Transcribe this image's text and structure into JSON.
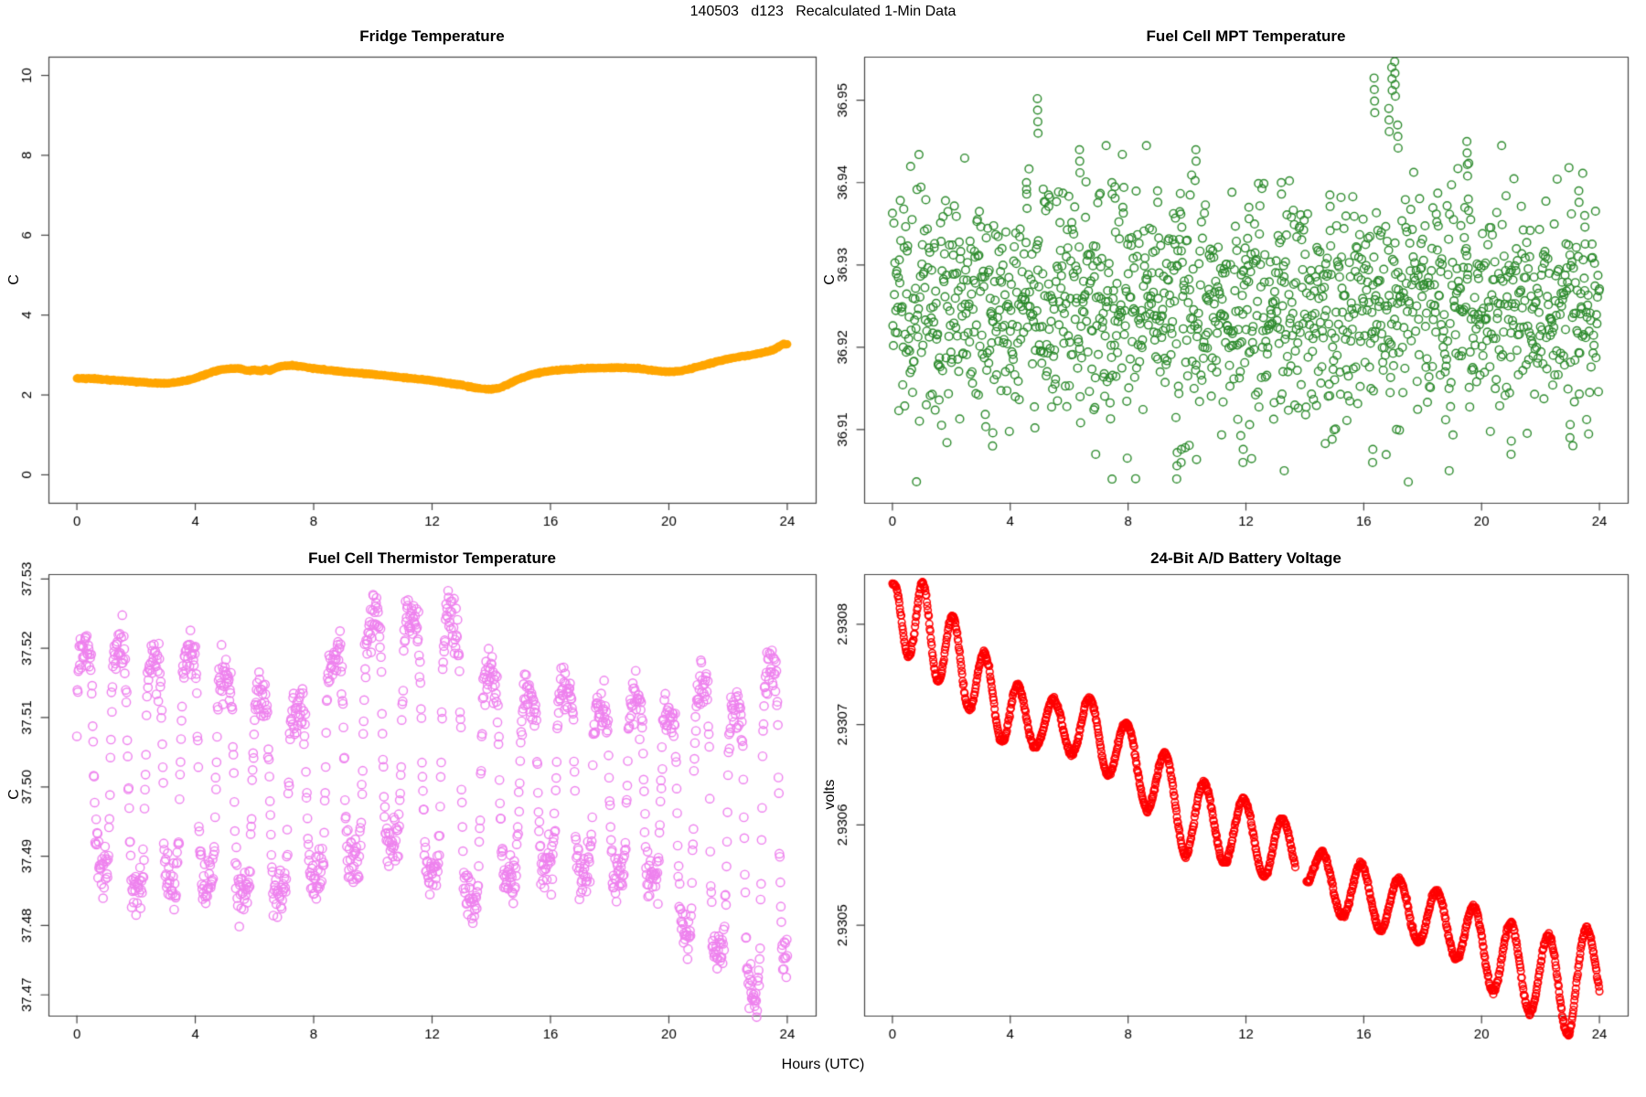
{
  "main_title": "140503   d123   Recalculated 1-Min Data",
  "xlabel": "Hours (UTC)",
  "seed": 42,
  "colors": {
    "axis": "#444444",
    "text": "#000000",
    "fridge_orange": "#FFA500",
    "mpt_green": "#2E8B2E",
    "thermistor_violet": "#EE82EE",
    "battery_red": "#FF0000",
    "background": "#FFFFFF"
  },
  "chart_data": [
    {
      "type": "line",
      "render": "line-keypoints",
      "title": "Fridge Temperature",
      "ylabel": "C",
      "color": "#FFA500",
      "line_width": 9,
      "noise_sd": 0.006,
      "n": 1440,
      "xlim": [
        -0.96,
        24.96
      ],
      "ylim": [
        -0.7,
        10.47
      ],
      "xticks": {
        "values": [
          0,
          4,
          8,
          12,
          16,
          20,
          24
        ],
        "labels": [
          "0",
          "4",
          "8",
          "12",
          "16",
          "20",
          "24"
        ]
      },
      "yticks": {
        "values": [
          0,
          2,
          4,
          6,
          8,
          10
        ],
        "labels": [
          "0",
          "2",
          "4",
          "6",
          "8",
          "10"
        ]
      },
      "keypoints": [
        [
          0,
          2.42
        ],
        [
          0.5,
          2.41
        ],
        [
          1,
          2.38
        ],
        [
          1.5,
          2.36
        ],
        [
          2,
          2.33
        ],
        [
          2.5,
          2.3
        ],
        [
          3,
          2.29
        ],
        [
          3.3,
          2.31
        ],
        [
          3.7,
          2.36
        ],
        [
          4,
          2.42
        ],
        [
          4.3,
          2.5
        ],
        [
          4.6,
          2.58
        ],
        [
          4.9,
          2.64
        ],
        [
          5.2,
          2.66
        ],
        [
          5.5,
          2.66
        ],
        [
          5.8,
          2.6
        ],
        [
          6.0,
          2.63
        ],
        [
          6.2,
          2.6
        ],
        [
          6.4,
          2.64
        ],
        [
          6.5,
          2.6
        ],
        [
          6.8,
          2.7
        ],
        [
          7.0,
          2.73
        ],
        [
          7.3,
          2.74
        ],
        [
          7.6,
          2.71
        ],
        [
          8,
          2.67
        ],
        [
          8.5,
          2.62
        ],
        [
          9,
          2.58
        ],
        [
          9.5,
          2.55
        ],
        [
          10,
          2.52
        ],
        [
          10.5,
          2.48
        ],
        [
          11,
          2.44
        ],
        [
          11.5,
          2.4
        ],
        [
          12,
          2.36
        ],
        [
          12.5,
          2.3
        ],
        [
          13,
          2.25
        ],
        [
          13.3,
          2.2
        ],
        [
          13.6,
          2.16
        ],
        [
          14,
          2.14
        ],
        [
          14.3,
          2.18
        ],
        [
          14.6,
          2.28
        ],
        [
          15,
          2.42
        ],
        [
          15.4,
          2.52
        ],
        [
          15.8,
          2.58
        ],
        [
          16.2,
          2.62
        ],
        [
          16.6,
          2.64
        ],
        [
          17,
          2.66
        ],
        [
          17.5,
          2.67
        ],
        [
          18,
          2.68
        ],
        [
          18.5,
          2.68
        ],
        [
          19,
          2.66
        ],
        [
          19.3,
          2.63
        ],
        [
          19.6,
          2.6
        ],
        [
          20,
          2.58
        ],
        [
          20.4,
          2.6
        ],
        [
          20.8,
          2.67
        ],
        [
          21.2,
          2.75
        ],
        [
          21.6,
          2.83
        ],
        [
          22,
          2.9
        ],
        [
          22.4,
          2.96
        ],
        [
          22.8,
          3.0
        ],
        [
          23.2,
          3.06
        ],
        [
          23.5,
          3.12
        ],
        [
          23.7,
          3.2
        ],
        [
          23.85,
          3.27
        ],
        [
          24,
          3.26
        ]
      ]
    },
    {
      "type": "scatter",
      "render": "scatter-gauss",
      "title": "Fuel Cell MPT Temperature",
      "ylabel": "C",
      "color": "#2E8B2E",
      "marker": {
        "r": 4.3,
        "lw": 1.4
      },
      "n": 1440,
      "mean": 36.925,
      "sd": 0.0068,
      "clip": [
        36.9035,
        36.9445
      ],
      "spike_step": 0.0014,
      "low_step": 0.0016,
      "spikes_up": [
        [
          4.55,
          36.94,
          2
        ],
        [
          4.92,
          36.9502,
          4
        ],
        [
          5.3,
          36.9385,
          2
        ],
        [
          6.35,
          36.944,
          3
        ],
        [
          7.45,
          36.94,
          2
        ],
        [
          7.55,
          36.9395,
          2
        ],
        [
          9.0,
          36.939,
          2
        ],
        [
          10.3,
          36.944,
          2
        ],
        [
          12.1,
          36.937,
          2
        ],
        [
          13.2,
          36.94,
          2
        ],
        [
          14.85,
          36.9385,
          2
        ],
        [
          16.35,
          36.9527,
          4
        ],
        [
          16.85,
          36.949,
          3
        ],
        [
          16.95,
          36.954,
          3
        ],
        [
          17.05,
          36.9547,
          4
        ],
        [
          17.15,
          36.947,
          3
        ],
        [
          19.5,
          36.945,
          4
        ],
        [
          19.55,
          36.938,
          2
        ],
        [
          23.3,
          36.939,
          2
        ],
        [
          23.5,
          36.936,
          2
        ]
      ],
      "lows": [
        [
          3.4,
          36.908,
          2
        ],
        [
          6.9,
          36.907,
          1
        ],
        [
          9.65,
          36.904,
          3
        ],
        [
          9.8,
          36.906,
          2
        ],
        [
          11.9,
          36.906,
          2
        ],
        [
          13.3,
          36.905,
          1
        ],
        [
          16.3,
          36.906,
          2
        ],
        [
          18.9,
          36.905,
          1
        ],
        [
          21.0,
          36.907,
          2
        ],
        [
          23.0,
          36.909,
          2
        ]
      ],
      "xlim": [
        -0.96,
        24.96
      ],
      "ylim": [
        36.9011,
        36.9553
      ],
      "xticks": {
        "values": [
          0,
          4,
          8,
          12,
          16,
          20,
          24
        ],
        "labels": [
          "0",
          "4",
          "8",
          "12",
          "16",
          "20",
          "24"
        ]
      },
      "yticks": {
        "values": [
          36.91,
          36.92,
          36.93,
          36.94,
          36.95
        ],
        "labels": [
          "36.91",
          "36.92",
          "36.93",
          "36.94",
          "36.95"
        ]
      }
    },
    {
      "type": "scatter",
      "render": "scatter-squarewave",
      "title": "Fuel Cell Thermistor Temperature",
      "ylabel": "C",
      "color": "#EE82EE",
      "marker": {
        "r": 4.6,
        "lw": 1.4
      },
      "n": 1440,
      "sharpness": 2.6,
      "noise_sd": 0.0018,
      "period_keypoints": [
        [
          0,
          1.15
        ],
        [
          4,
          1.2
        ],
        [
          8,
          1.25
        ],
        [
          12,
          1.35
        ],
        [
          16,
          1.25
        ],
        [
          20,
          1.1
        ],
        [
          24,
          1.2
        ]
      ],
      "top_keypoints": [
        [
          0,
          37.52
        ],
        [
          2,
          37.521
        ],
        [
          3,
          37.517
        ],
        [
          4,
          37.52
        ],
        [
          5,
          37.516
        ],
        [
          6,
          37.513
        ],
        [
          7,
          37.511
        ],
        [
          8,
          37.512
        ],
        [
          8.7,
          37.519
        ],
        [
          9.5,
          37.522
        ],
        [
          10,
          37.524
        ],
        [
          10.7,
          37.527
        ],
        [
          11.5,
          37.524
        ],
        [
          12.2,
          37.528
        ],
        [
          12.7,
          37.524
        ],
        [
          13.2,
          37.52
        ],
        [
          14,
          37.516
        ],
        [
          14.8,
          37.511
        ],
        [
          15.5,
          37.513
        ],
        [
          16,
          37.516
        ],
        [
          16.8,
          37.514
        ],
        [
          17.5,
          37.512
        ],
        [
          18,
          37.51
        ],
        [
          18.7,
          37.513
        ],
        [
          19.5,
          37.512
        ],
        [
          20,
          37.51
        ],
        [
          20.6,
          37.513
        ],
        [
          21.3,
          37.515
        ],
        [
          22,
          37.511
        ],
        [
          22.7,
          37.513
        ],
        [
          23.3,
          37.517
        ],
        [
          23.8,
          37.519
        ],
        [
          24,
          37.512
        ]
      ],
      "bottom_keypoints": [
        [
          0,
          37.494
        ],
        [
          1,
          37.487
        ],
        [
          2,
          37.485
        ],
        [
          2.5,
          37.483
        ],
        [
          3.5,
          37.487
        ],
        [
          4.5,
          37.486
        ],
        [
          5.5,
          37.485
        ],
        [
          6.5,
          37.484
        ],
        [
          7.5,
          37.486
        ],
        [
          8.5,
          37.487
        ],
        [
          9.5,
          37.49
        ],
        [
          10.5,
          37.492
        ],
        [
          11.5,
          37.49
        ],
        [
          12.3,
          37.486
        ],
        [
          13,
          37.484
        ],
        [
          13.8,
          37.483
        ],
        [
          14.5,
          37.486
        ],
        [
          15.3,
          37.488
        ],
        [
          16,
          37.489
        ],
        [
          17,
          37.487
        ],
        [
          18,
          37.486
        ],
        [
          18.8,
          37.488
        ],
        [
          19.5,
          37.487
        ],
        [
          20.2,
          37.482
        ],
        [
          20.8,
          37.477
        ],
        [
          21.3,
          37.474
        ],
        [
          21.8,
          37.477
        ],
        [
          22.3,
          37.473
        ],
        [
          22.8,
          37.47
        ],
        [
          23.2,
          37.468
        ],
        [
          23.6,
          37.472
        ],
        [
          24,
          37.477
        ]
      ],
      "xlim": [
        -0.96,
        24.96
      ],
      "ylim": [
        37.467,
        37.5307
      ],
      "xticks": {
        "values": [
          0,
          4,
          8,
          12,
          16,
          20,
          24
        ],
        "labels": [
          "0",
          "4",
          "8",
          "12",
          "16",
          "20",
          "24"
        ]
      },
      "yticks": {
        "values": [
          37.47,
          37.48,
          37.49,
          37.5,
          37.51,
          37.52,
          37.53
        ],
        "labels": [
          "37.47",
          "37.48",
          "37.49",
          "37.50",
          "37.51",
          "37.52",
          "37.53"
        ]
      }
    },
    {
      "type": "scatter",
      "render": "scatter-trend-sine",
      "title": "24-Bit A/D Battery Voltage",
      "ylabel": "volts",
      "color": "#FF0000",
      "marker": {
        "r": 3.8,
        "lw": 1.5
      },
      "n": 1440,
      "phase0": 1.1,
      "noise_sd": 1.2e-06,
      "gap": [
        13.68,
        14.05
      ],
      "trend_keypoints": [
        [
          0,
          2.93081
        ],
        [
          1,
          2.9308
        ],
        [
          2,
          2.93077
        ],
        [
          3,
          2.93074
        ],
        [
          4,
          2.93071
        ],
        [
          5,
          2.9307
        ],
        [
          6,
          2.9307
        ],
        [
          7,
          2.93069
        ],
        [
          8,
          2.93067
        ],
        [
          9,
          2.93064
        ],
        [
          10,
          2.93061
        ],
        [
          11,
          2.9306
        ],
        [
          12,
          2.93059
        ],
        [
          13,
          2.93058
        ],
        [
          14,
          2.93056
        ],
        [
          15,
          2.93054
        ],
        [
          16,
          2.93053
        ],
        [
          17,
          2.93052
        ],
        [
          18,
          2.93051
        ],
        [
          19,
          2.9305
        ],
        [
          20,
          2.93048
        ],
        [
          21,
          2.93046
        ],
        [
          22,
          2.93045
        ],
        [
          23,
          2.93044
        ],
        [
          24,
          2.93046
        ]
      ],
      "amp_keypoints": [
        [
          0,
          3e-05
        ],
        [
          1,
          4.2e-05
        ],
        [
          2,
          4e-05
        ],
        [
          3,
          3.5e-05
        ],
        [
          4,
          3.5e-05
        ],
        [
          5,
          2.2e-05
        ],
        [
          6,
          2.8e-05
        ],
        [
          7,
          3.5e-05
        ],
        [
          8,
          3e-05
        ],
        [
          9,
          3.8e-05
        ],
        [
          10,
          4.2e-05
        ],
        [
          11,
          3.5e-05
        ],
        [
          12,
          3.5e-05
        ],
        [
          13,
          3.5e-05
        ],
        [
          14,
          1.8e-05
        ],
        [
          15,
          2.8e-05
        ],
        [
          16,
          3e-05
        ],
        [
          17,
          2.8e-05
        ],
        [
          18,
          2.8e-05
        ],
        [
          19,
          3e-05
        ],
        [
          20,
          3.5e-05
        ],
        [
          21,
          4.2e-05
        ],
        [
          22,
          4e-05
        ],
        [
          23,
          5e-05
        ],
        [
          24,
          4.2e-05
        ]
      ],
      "period_keypoints": [
        [
          0,
          0.95
        ],
        [
          4,
          1.15
        ],
        [
          8,
          1.3
        ],
        [
          12,
          1.35
        ],
        [
          16,
          1.3
        ],
        [
          20,
          1.25
        ],
        [
          24,
          1.3
        ]
      ],
      "xlim": [
        -0.96,
        24.96
      ],
      "ylim": [
        2.93041,
        2.93085
      ],
      "xticks": {
        "values": [
          0,
          4,
          8,
          12,
          16,
          20,
          24
        ],
        "labels": [
          "0",
          "4",
          "8",
          "12",
          "16",
          "20",
          "24"
        ]
      },
      "yticks": {
        "values": [
          2.9305,
          2.9306,
          2.9307,
          2.9308
        ],
        "labels": [
          "2.9305",
          "2.9306",
          "2.9307",
          "2.9308"
        ]
      }
    }
  ]
}
